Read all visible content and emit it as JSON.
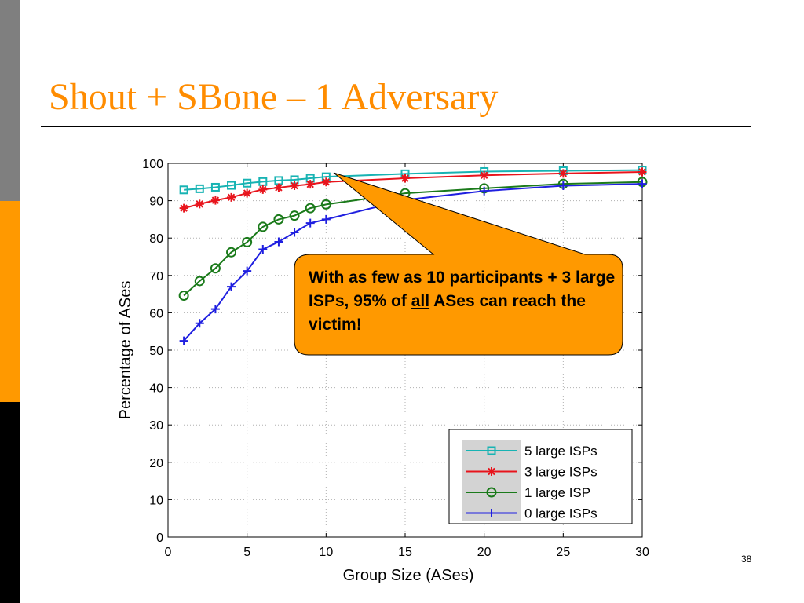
{
  "slide": {
    "title": "Shout + SBone – 1 Adversary",
    "page_number": "38",
    "callout": {
      "before": "With as few as 10 participants + 3 large ISPs, 95% of ",
      "underlined": "all",
      "after": " ASes can reach the victim!",
      "fill_color": "#ff9900"
    },
    "sidebar_colors": [
      "#7f7f7f",
      "#ff9900",
      "#000000"
    ],
    "title_color": "#ff8c00"
  },
  "chart_data": {
    "type": "line",
    "title": "",
    "xlabel": "Group Size (ASes)",
    "ylabel": "Percentage of ASes",
    "xlim": [
      0,
      30
    ],
    "ylim": [
      0,
      100
    ],
    "xticks": [
      0,
      5,
      10,
      15,
      20,
      25,
      30
    ],
    "yticks": [
      0,
      10,
      20,
      30,
      40,
      50,
      60,
      70,
      80,
      90,
      100
    ],
    "grid": "dotted",
    "legend_position": "bottom-right",
    "series": [
      {
        "name": "5 large ISPs",
        "color": "#17b3b3",
        "marker": "square",
        "x": [
          1,
          2,
          3,
          4,
          5,
          6,
          7,
          8,
          9,
          10,
          15,
          20,
          25,
          30
        ],
        "y": [
          92.9,
          93.2,
          93.6,
          94.1,
          94.7,
          95.1,
          95.4,
          95.6,
          96.0,
          96.4,
          97.2,
          97.8,
          98.0,
          98.2
        ]
      },
      {
        "name": "3 large ISPs",
        "color": "#e8141c",
        "marker": "star",
        "x": [
          1,
          2,
          3,
          4,
          5,
          6,
          7,
          8,
          9,
          10,
          15,
          20,
          25,
          30
        ],
        "y": [
          88.0,
          89.1,
          90.1,
          90.9,
          92.0,
          93.0,
          93.5,
          94.0,
          94.4,
          95.0,
          96.0,
          96.8,
          97.3,
          97.7
        ]
      },
      {
        "name": "1 large ISP",
        "color": "#1a7a1a",
        "marker": "circle",
        "x": [
          1,
          2,
          3,
          4,
          5,
          6,
          7,
          8,
          9,
          10,
          15,
          20,
          25,
          30
        ],
        "y": [
          64.6,
          68.5,
          71.9,
          76.2,
          78.9,
          83.0,
          85.0,
          86.0,
          88.0,
          89.0,
          92.0,
          93.3,
          94.5,
          95.0
        ]
      },
      {
        "name": "0 large ISPs",
        "color": "#1f1fe0",
        "marker": "plus",
        "x": [
          1,
          2,
          3,
          4,
          5,
          6,
          7,
          8,
          9,
          10,
          15,
          20,
          25,
          30
        ],
        "y": [
          52.5,
          57.2,
          61.0,
          67.0,
          71.2,
          77.0,
          79.0,
          81.5,
          84.0,
          85.0,
          90.2,
          92.6,
          94.0,
          94.5
        ]
      }
    ]
  }
}
